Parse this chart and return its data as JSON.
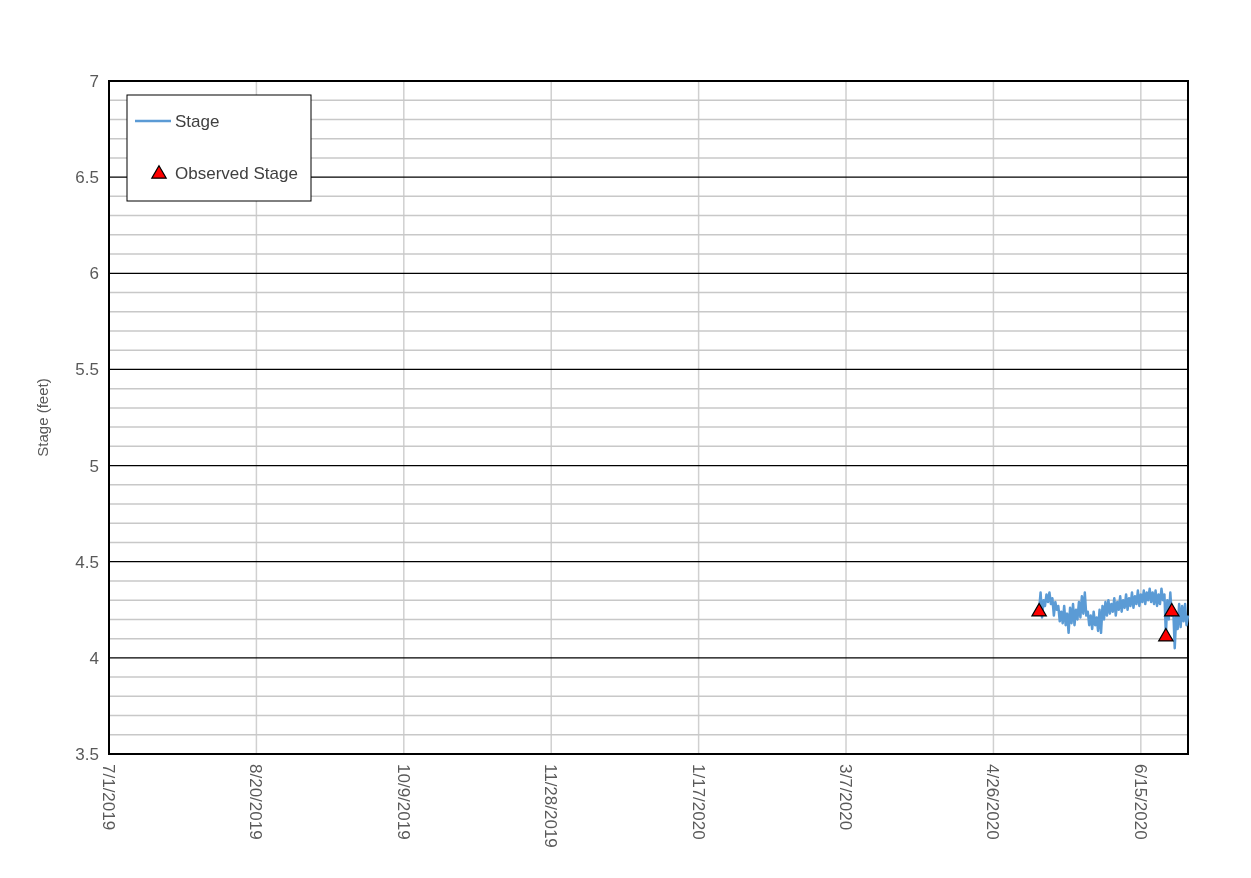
{
  "chart_data": {
    "type": "line",
    "ylabel": "Stage (feet)",
    "xlim": [
      "2019-07-01",
      "2020-07-01"
    ],
    "xticks": [
      {
        "value": "2019-07-01",
        "label": "7/1/2019"
      },
      {
        "value": "2019-08-20",
        "label": "8/20/2019"
      },
      {
        "value": "2019-10-09",
        "label": "10/9/2019"
      },
      {
        "value": "2019-11-28",
        "label": "11/28/2019"
      },
      {
        "value": "2020-01-17",
        "label": "1/17/2020"
      },
      {
        "value": "2020-03-07",
        "label": "3/7/2020"
      },
      {
        "value": "2020-04-26",
        "label": "4/26/2020"
      },
      {
        "value": "2020-06-15",
        "label": "6/15/2020"
      }
    ],
    "ylim": [
      3.5,
      7
    ],
    "yticks": [
      3.5,
      {
        "value": 3.6,
        "label": null
      },
      {
        "value": 3.7,
        "label": null
      },
      {
        "value": 3.8,
        "label": null
      },
      {
        "value": 3.9,
        "label": null
      },
      4,
      {
        "value": 4.1,
        "label": null
      },
      {
        "value": 4.2,
        "label": null
      },
      {
        "value": 4.3,
        "label": null
      },
      {
        "value": 4.4,
        "label": null
      },
      4.5,
      {
        "value": 4.6,
        "label": null
      },
      {
        "value": 4.7,
        "label": null
      },
      {
        "value": 4.8,
        "label": null
      },
      {
        "value": 4.9,
        "label": null
      },
      5,
      {
        "value": 5.1,
        "label": null
      },
      {
        "value": 5.2,
        "label": null
      },
      {
        "value": 5.3,
        "label": null
      },
      {
        "value": 5.4,
        "label": null
      },
      5.5,
      {
        "value": 5.6,
        "label": null
      },
      {
        "value": 5.7,
        "label": null
      },
      {
        "value": 5.8,
        "label": null
      },
      {
        "value": 5.9,
        "label": null
      },
      6,
      {
        "value": 6.1,
        "label": null
      },
      {
        "value": 6.2,
        "label": null
      },
      {
        "value": 6.3,
        "label": null
      },
      {
        "value": 6.4,
        "label": null
      },
      6.5,
      {
        "value": 6.6,
        "label": null
      },
      {
        "value": 6.7,
        "label": null
      },
      {
        "value": 6.8,
        "label": null
      },
      {
        "value": 6.9,
        "label": null
      },
      7
    ],
    "grid": true,
    "legend": "top left",
    "series": [
      {
        "name": "Stage",
        "color": "#5b9bd5",
        "marker": "none",
        "x": [
          "2020-05-11T12:00",
          "2020-05-12T00:00",
          "2020-05-12T12:00",
          "2020-05-13T00:00",
          "2020-05-13T12:00",
          "2020-05-14T00:00",
          "2020-05-14T12:00",
          "2020-05-15T00:00",
          "2020-05-15T12:00",
          "2020-05-16T00:00",
          "2020-05-16T12:00",
          "2020-05-17T00:00",
          "2020-05-17T12:00",
          "2020-05-18T00:00",
          "2020-05-18T12:00",
          "2020-05-19T00:00",
          "2020-05-19T12:00",
          "2020-05-20T00:00",
          "2020-05-20T12:00",
          "2020-05-21T00:00",
          "2020-05-21T12:00",
          "2020-05-22T00:00",
          "2020-05-22T12:00",
          "2020-05-23T00:00",
          "2020-05-23T12:00",
          "2020-05-24T00:00",
          "2020-05-24T12:00",
          "2020-05-25T00:00",
          "2020-05-25T12:00",
          "2020-05-26T00:00",
          "2020-05-26T12:00",
          "2020-05-27T00:00",
          "2020-05-27T12:00",
          "2020-05-28T00:00",
          "2020-05-28T12:00",
          "2020-05-29T00:00",
          "2020-05-29T12:00",
          "2020-05-30T00:00",
          "2020-05-30T12:00",
          "2020-05-31T00:00",
          "2020-05-31T12:00",
          "2020-06-01T00:00",
          "2020-06-01T12:00",
          "2020-06-02T00:00",
          "2020-06-02T12:00",
          "2020-06-03T00:00",
          "2020-06-03T12:00",
          "2020-06-04T00:00",
          "2020-06-04T12:00",
          "2020-06-05T00:00",
          "2020-06-05T12:00",
          "2020-06-06T00:00",
          "2020-06-06T12:00",
          "2020-06-07T00:00",
          "2020-06-07T12:00",
          "2020-06-08T00:00",
          "2020-06-08T12:00",
          "2020-06-09T00:00",
          "2020-06-09T12:00",
          "2020-06-10T00:00",
          "2020-06-10T12:00",
          "2020-06-11T00:00",
          "2020-06-11T12:00",
          "2020-06-12T00:00",
          "2020-06-12T12:00",
          "2020-06-13T00:00",
          "2020-06-13T12:00",
          "2020-06-14T00:00",
          "2020-06-14T12:00",
          "2020-06-15T00:00",
          "2020-06-15T12:00",
          "2020-06-16T00:00",
          "2020-06-16T12:00",
          "2020-06-17T00:00",
          "2020-06-17T12:00",
          "2020-06-18T00:00",
          "2020-06-18T12:00",
          "2020-06-19T00:00",
          "2020-06-19T12:00",
          "2020-06-20T00:00",
          "2020-06-20T12:00",
          "2020-06-21T00:00",
          "2020-06-21T12:00",
          "2020-06-22T00:00",
          "2020-06-22T12:00",
          "2020-06-23T00:00",
          "2020-06-23T12:00",
          "2020-06-24T00:00",
          "2020-06-24T12:00",
          "2020-06-25T00:00",
          "2020-06-25T12:00",
          "2020-06-26T00:00",
          "2020-06-26T12:00",
          "2020-06-27T00:00",
          "2020-06-27T12:00",
          "2020-06-28T00:00",
          "2020-06-28T12:00",
          "2020-06-29T00:00",
          "2020-06-29T12:00",
          "2020-06-30T00:00",
          "2020-06-30T12:00",
          "2020-07-01T00:00"
        ],
        "values": [
          4.25,
          4.34,
          4.21,
          4.3,
          4.27,
          4.33,
          4.29,
          4.34,
          4.28,
          4.31,
          4.22,
          4.29,
          4.25,
          4.27,
          4.19,
          4.24,
          4.18,
          4.27,
          4.17,
          4.23,
          4.13,
          4.26,
          4.18,
          4.28,
          4.17,
          4.25,
          4.2,
          4.29,
          4.21,
          4.32,
          4.23,
          4.34,
          4.22,
          4.24,
          4.17,
          4.22,
          4.15,
          4.24,
          4.17,
          4.21,
          4.14,
          4.25,
          4.13,
          4.27,
          4.2,
          4.29,
          4.22,
          4.3,
          4.23,
          4.28,
          4.24,
          4.31,
          4.22,
          4.29,
          4.25,
          4.32,
          4.24,
          4.3,
          4.26,
          4.33,
          4.25,
          4.31,
          4.27,
          4.34,
          4.26,
          4.32,
          4.28,
          4.35,
          4.27,
          4.33,
          4.29,
          4.35,
          4.28,
          4.34,
          4.3,
          4.36,
          4.29,
          4.34,
          4.28,
          4.35,
          4.27,
          4.33,
          4.28,
          4.36,
          4.3,
          4.33,
          4.12,
          4.3,
          4.2,
          4.34,
          4.22,
          4.25,
          4.05,
          4.22,
          4.15,
          4.28,
          4.16,
          4.27,
          4.19,
          4.28,
          4.17,
          4.22
        ]
      },
      {
        "name": "Observed Stage",
        "type": "scatter",
        "color": "#ff0000",
        "marker": "triangle",
        "x": [
          "2020-05-11T12:00",
          "2020-06-23T12:00",
          "2020-06-25T12:00"
        ],
        "values": [
          4.25,
          4.12,
          4.25
        ]
      }
    ]
  }
}
